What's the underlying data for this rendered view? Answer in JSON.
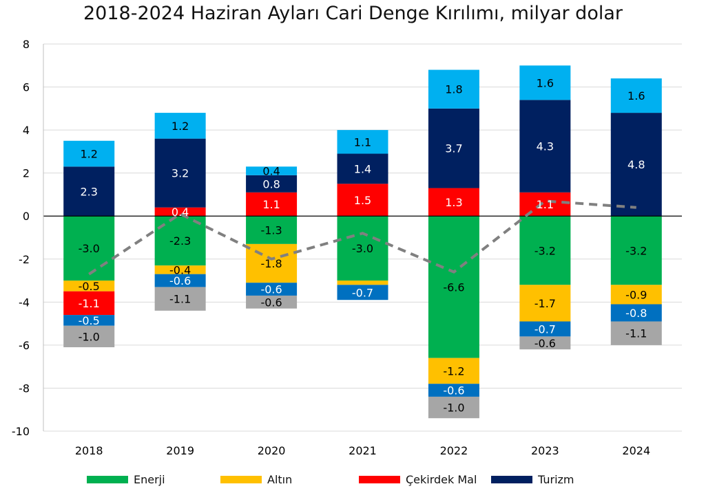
{
  "chart_data": {
    "type": "bar",
    "stacked": true,
    "title": "2018-2024 Haziran Ayları Cari Denge Kırılımı, milyar dolar",
    "categories": [
      "2018",
      "2019",
      "2020",
      "2021",
      "2022",
      "2023",
      "2024"
    ],
    "ylim": [
      -10,
      8
    ],
    "yticks": [
      -10,
      -8,
      -6,
      -4,
      -2,
      0,
      2,
      4,
      6,
      8
    ],
    "grid": true,
    "legend_position": "bottom",
    "series": [
      {
        "name": "Enerji",
        "color": "#00B050",
        "values": [
          -3.0,
          -2.3,
          -1.3,
          -3.0,
          -6.6,
          -3.2,
          -3.2
        ],
        "labels": [
          "-3.0",
          "-2.3",
          "-1.3",
          "-3.0",
          "-6.6",
          "-3.2",
          "-3.2"
        ]
      },
      {
        "name": "Altın",
        "color": "#FFC000",
        "values": [
          -0.5,
          -0.4,
          -1.8,
          -0.2,
          -1.2,
          -1.7,
          -0.9
        ],
        "labels": [
          "-0.5",
          "-0.4",
          "-1.8",
          "",
          "-1.2",
          "-1.7",
          "-0.9"
        ]
      },
      {
        "name": "Çekirdek Mal",
        "color": "#FF0000",
        "values": [
          -1.1,
          0.4,
          1.1,
          1.5,
          1.3,
          1.1,
          0.0
        ],
        "labels": [
          "-1.1",
          "0.4",
          "1.1",
          "1.5",
          "1.3",
          "1.1",
          ""
        ]
      },
      {
        "name": "",
        "color": "#0070C0",
        "values": [
          -0.5,
          -0.6,
          -0.6,
          -0.7,
          -0.6,
          -0.7,
          -0.8
        ],
        "labels": [
          "-0.5",
          "-0.6",
          "-0.6",
          "-0.7",
          "-0.6",
          "-0.7",
          "-0.8"
        ]
      },
      {
        "name": "",
        "color": "#A6A6A6",
        "values": [
          -1.0,
          -1.1,
          -0.6,
          0.0,
          -1.0,
          -0.6,
          -1.1
        ],
        "labels": [
          "-1.0",
          "-1.1",
          "-0.6",
          "",
          "-1.0",
          "-0.6",
          "-1.1"
        ]
      },
      {
        "name": "Turizm",
        "color": "#002060",
        "values": [
          2.3,
          3.2,
          0.8,
          1.4,
          3.7,
          4.3,
          4.8
        ],
        "labels": [
          "2.3",
          "3.2",
          "0.8",
          "1.4",
          "3.7",
          "4.3",
          "4.8"
        ]
      },
      {
        "name": "",
        "color": "#00B0F0",
        "values": [
          1.2,
          1.2,
          0.4,
          1.1,
          1.8,
          1.6,
          1.6
        ],
        "labels": [
          "1.2",
          "1.2",
          "0.4",
          "1.1",
          "1.8",
          "1.6",
          "1.6"
        ]
      }
    ],
    "line_series": {
      "name": "",
      "color": "#808080",
      "dashed": true,
      "values": [
        -2.7,
        0.1,
        -2.0,
        -0.8,
        -2.6,
        0.7,
        0.4
      ]
    }
  }
}
